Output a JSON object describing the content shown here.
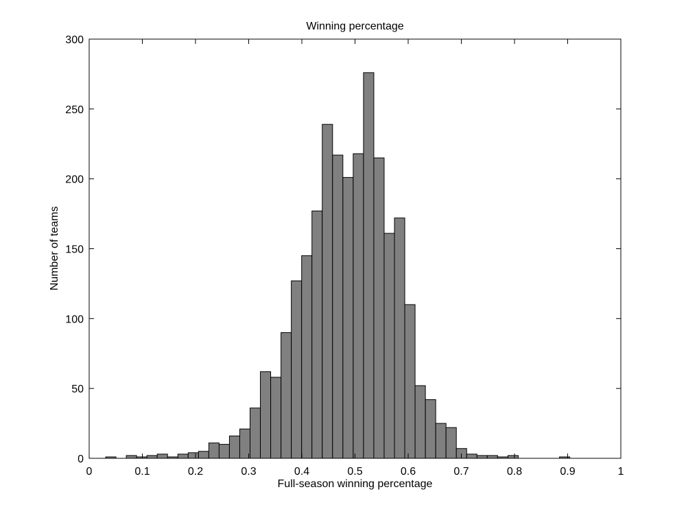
{
  "chart_data": {
    "type": "bar",
    "histogram": true,
    "title": "Winning percentage",
    "xlabel": "Full-season winning percentage",
    "ylabel": "Number of teams",
    "xlim": [
      0,
      1
    ],
    "ylim": [
      0,
      300
    ],
    "xticks": [
      0,
      0.1,
      0.2,
      0.3,
      0.4,
      0.5,
      0.6,
      0.7,
      0.8,
      0.9,
      1
    ],
    "xtick_labels": [
      "0",
      "0.1",
      "0.2",
      "0.3",
      "0.4",
      "0.5",
      "0.6",
      "0.7",
      "0.8",
      "0.9",
      "1"
    ],
    "yticks": [
      0,
      50,
      100,
      150,
      200,
      250,
      300
    ],
    "ytick_labels": [
      "0",
      "50",
      "100",
      "150",
      "200",
      "250",
      "300"
    ],
    "grid": false,
    "bin_edges": [
      0.031,
      0.0504,
      0.0698,
      0.0892,
      0.1086,
      0.128,
      0.1474,
      0.1668,
      0.1862,
      0.2056,
      0.225,
      0.2444,
      0.2638,
      0.2832,
      0.3026,
      0.322,
      0.3414,
      0.3608,
      0.3802,
      0.3996,
      0.419,
      0.4384,
      0.4578,
      0.4772,
      0.4966,
      0.516,
      0.5354,
      0.5548,
      0.5742,
      0.5936,
      0.613,
      0.6324,
      0.6518,
      0.6712,
      0.6906,
      0.71,
      0.7294,
      0.7488,
      0.7682,
      0.7876,
      0.807,
      0.8264,
      0.8458,
      0.8652,
      0.8846,
      0.904,
      0.9234
    ],
    "values": [
      1,
      0,
      2,
      1,
      2,
      3,
      1,
      3,
      4,
      5,
      11,
      10,
      16,
      21,
      36,
      62,
      58,
      90,
      127,
      145,
      177,
      239,
      217,
      201,
      218,
      276,
      215,
      161,
      172,
      110,
      52,
      42,
      25,
      22,
      7,
      3,
      2,
      2,
      1,
      2,
      0,
      0,
      0,
      0,
      1,
      0
    ],
    "colors": {
      "bar_fill": "#808080",
      "bar_stroke": "#000000",
      "axes": "#000000",
      "background": "#ffffff"
    }
  }
}
